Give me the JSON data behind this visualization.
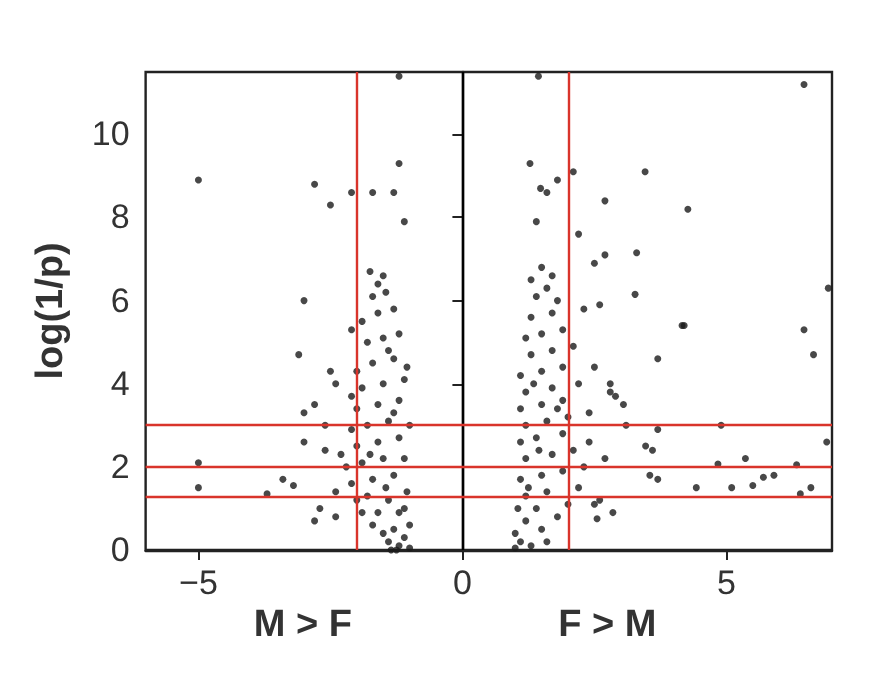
{
  "chart_data": {
    "type": "scatter",
    "ylabel": "log(1/p)",
    "annotations": [
      "M > F",
      "F > M"
    ],
    "xlim": [
      -6,
      7
    ],
    "xticks": [
      -5,
      0,
      5
    ],
    "ylim": [
      0,
      11.5
    ],
    "yticks": [
      0,
      2,
      4,
      6,
      8,
      10
    ],
    "grid": false,
    "marker": "circle",
    "ref_lines": [
      {
        "axis": "x",
        "value": 0,
        "color": "#000000"
      },
      {
        "axis": "x",
        "value": -2,
        "color": "#d9342b"
      },
      {
        "axis": "x",
        "value": 2,
        "color": "#d9342b"
      },
      {
        "axis": "y",
        "value": 3,
        "color": "#d9342b"
      },
      {
        "axis": "y",
        "value": 2,
        "color": "#d9342b"
      },
      {
        "axis": "y",
        "value": 1.3,
        "color": "#d9342b"
      }
    ],
    "series": [
      {
        "color": "#1a1a1a",
        "x": [
          -5.0,
          -1.2,
          -1.2,
          -2.8,
          -2.5,
          -2.1,
          -1.7,
          -1.3,
          -1.1,
          -3.0,
          -3.1,
          -5.0,
          -5.0,
          -3.7,
          -3.4,
          -3.2,
          -3.0,
          -3.0,
          -2.8,
          -2.4,
          -2.5,
          -2.4,
          -2.6,
          -2.6,
          -2.1,
          -2.8,
          -2.7,
          -1.0,
          -1.2,
          -1.4,
          -1.1,
          -1.5,
          -1.3,
          -1.0,
          -1.7,
          -1.9,
          -1.6,
          -1.2,
          -2.0,
          -1.8,
          -1.4,
          -1.05,
          -2.1,
          -1.7,
          -1.3,
          -2.2,
          -1.9,
          -1.5,
          -1.1,
          -2.0,
          -1.6,
          -1.2,
          -2.1,
          -1.8,
          -1.4,
          -1.0,
          -2.0,
          -1.6,
          -1.2,
          -1.9,
          -1.5,
          -1.1,
          -2.0,
          -1.7,
          -1.3,
          -1.05,
          -1.8,
          -1.5,
          -1.2,
          -1.9,
          -1.6,
          -1.3,
          -1.7,
          -1.45,
          -1.75,
          -1.5,
          -1.6,
          -1.35,
          -1.1,
          -1.45,
          -1.75,
          -1.3,
          -1.4,
          -2.1,
          -2.3,
          -2.4,
          -1.25
        ],
        "values": [
          8.9,
          11.4,
          9.3,
          8.8,
          8.3,
          8.6,
          8.6,
          8.6,
          7.9,
          6.0,
          4.7,
          2.1,
          1.5,
          1.35,
          1.7,
          1.55,
          3.3,
          2.6,
          0.7,
          0.8,
          4.3,
          4.0,
          3.0,
          2.4,
          5.3,
          3.5,
          1.0,
          0.05,
          0.1,
          0.2,
          0.3,
          0.4,
          0.5,
          0.6,
          0.6,
          0.9,
          0.9,
          0.9,
          1.2,
          1.3,
          1.2,
          1.4,
          1.6,
          1.7,
          1.8,
          2.0,
          2.1,
          2.2,
          2.2,
          2.5,
          2.6,
          2.7,
          2.9,
          3.0,
          3.1,
          3.0,
          3.4,
          3.5,
          3.6,
          3.9,
          4.0,
          4.1,
          4.3,
          4.5,
          4.6,
          4.4,
          5.0,
          5.1,
          5.2,
          5.5,
          5.7,
          5.8,
          6.1,
          6.2,
          6.7,
          6.6,
          6.4,
          0.0,
          1.0,
          1.5,
          2.3,
          3.3,
          4.8,
          3.7,
          2.3,
          1.4,
          0.0
        ]
      },
      {
        "color": "#1a1a1a",
        "x": [
          1.44,
          1.28,
          2.1,
          3.46,
          1.8,
          1.48,
          1.6,
          2.7,
          4.27,
          1.4,
          6.47,
          6.93,
          6.47,
          6.65,
          4.16,
          4.2,
          3.3,
          3.27,
          2.7,
          2.2,
          2.5,
          2.6,
          3.7,
          6.9,
          4.9,
          4.84,
          5.36,
          5.9,
          6.33,
          6.6,
          6.4,
          5.7,
          5.5,
          5.1,
          4.43,
          3.7,
          3.47,
          3.6,
          3.55,
          3.7,
          3.1,
          3.05,
          2.9,
          2.8,
          2.85,
          2.5,
          2.55,
          1.0,
          1.1,
          1.3,
          1.0,
          1.5,
          1.2,
          1.8,
          1.05,
          1.4,
          2.0,
          1.2,
          1.6,
          2.2,
          1.1,
          1.5,
          1.9,
          2.3,
          1.2,
          1.7,
          2.1,
          1.1,
          1.4,
          1.9,
          2.4,
          1.2,
          1.6,
          2.0,
          1.1,
          1.5,
          1.9,
          2.4,
          1.2,
          1.7,
          2.2,
          1.1,
          1.5,
          1.9,
          1.3,
          1.7,
          2.1,
          1.2,
          1.5,
          1.9,
          1.3,
          1.7,
          2.3,
          1.4,
          1.6,
          1.8,
          1.3,
          1.5,
          1.7,
          1.25,
          1.45,
          1.35,
          1.6,
          1.8,
          2.6,
          2.7,
          2.5,
          2.8
        ],
        "values": [
          11.4,
          9.3,
          9.1,
          9.1,
          8.9,
          8.7,
          8.6,
          8.4,
          8.2,
          7.9,
          11.2,
          6.3,
          5.3,
          4.7,
          5.4,
          5.4,
          7.15,
          6.15,
          7.1,
          7.6,
          6.9,
          5.9,
          4.6,
          2.6,
          3.0,
          2.07,
          2.2,
          1.8,
          2.05,
          1.5,
          1.35,
          1.75,
          1.55,
          1.5,
          1.5,
          2.9,
          2.5,
          2.4,
          1.8,
          1.7,
          3.0,
          3.5,
          3.7,
          3.8,
          0.9,
          1.1,
          0.75,
          0.05,
          0.2,
          0.1,
          0.4,
          0.5,
          0.7,
          0.8,
          1.0,
          1.0,
          1.1,
          1.3,
          1.4,
          1.5,
          1.7,
          1.8,
          1.9,
          2.0,
          2.2,
          2.3,
          2.4,
          2.6,
          2.7,
          2.8,
          2.6,
          3.0,
          3.1,
          3.2,
          3.4,
          3.5,
          3.6,
          3.3,
          3.8,
          3.9,
          4.0,
          4.2,
          4.3,
          4.4,
          4.7,
          4.8,
          4.9,
          5.1,
          5.2,
          5.3,
          5.6,
          5.7,
          5.8,
          6.1,
          6.3,
          6.0,
          6.5,
          6.8,
          6.6,
          1.5,
          2.4,
          4.0,
          0.2,
          3.4,
          1.2,
          2.2,
          4.4,
          4.0
        ]
      }
    ]
  }
}
